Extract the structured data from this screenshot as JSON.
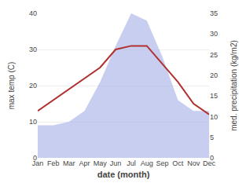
{
  "chart_data": {
    "type": "line",
    "categories": [
      "Jan",
      "Feb",
      "Mar",
      "Apr",
      "May",
      "Jun",
      "Jul",
      "Aug",
      "Sep",
      "Oct",
      "Nov",
      "Dec"
    ],
    "series": [
      {
        "type": "area",
        "color": "#aab4e8",
        "values": [
          9,
          9,
          10,
          13,
          21,
          31,
          40,
          38,
          28,
          16,
          13,
          13
        ]
      },
      {
        "type": "line",
        "color": "#b03030",
        "values": [
          13,
          16,
          19,
          22,
          25,
          30,
          31,
          31,
          26,
          21,
          15,
          12
        ]
      }
    ],
    "ylim": [
      0,
      40
    ],
    "yticks": [
      0,
      10,
      20,
      30,
      40
    ],
    "y2lim": [
      0,
      35
    ],
    "y2ticks": [
      0,
      5,
      10,
      15,
      20,
      25,
      30,
      35
    ],
    "ylabel": "max temp (C)",
    "y2label": "med. precipitation (kg/m2)",
    "xlabel": "date (month)",
    "grid": true
  }
}
